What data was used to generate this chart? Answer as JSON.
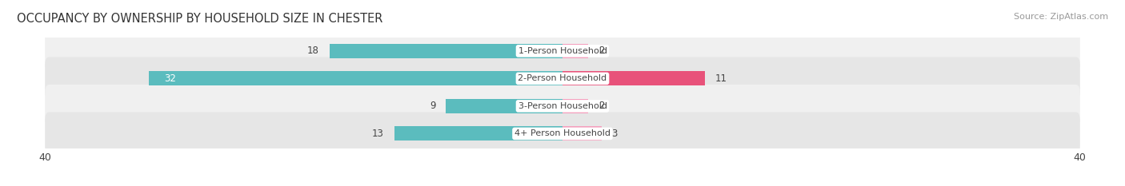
{
  "title": "OCCUPANCY BY OWNERSHIP BY HOUSEHOLD SIZE IN CHESTER",
  "source": "Source: ZipAtlas.com",
  "categories": [
    "1-Person Household",
    "2-Person Household",
    "3-Person Household",
    "4+ Person Household"
  ],
  "owner_values": [
    18,
    32,
    9,
    13
  ],
  "renter_values": [
    2,
    11,
    2,
    3
  ],
  "owner_color": "#5bbcbe",
  "renter_color_normal": "#f4a0be",
  "renter_color_highlight": "#e8527a",
  "bar_bg_colors": [
    "#f0f0f0",
    "#e6e6e6",
    "#f0f0f0",
    "#e6e6e6"
  ],
  "axis_max": 40,
  "axis_min": -40,
  "title_fontsize": 10.5,
  "source_fontsize": 8,
  "label_fontsize": 8,
  "value_fontsize": 8.5,
  "legend_fontsize": 8.5,
  "axis_label_fontsize": 9,
  "background_color": "#ffffff",
  "text_color": "#444444",
  "title_color": "#333333"
}
